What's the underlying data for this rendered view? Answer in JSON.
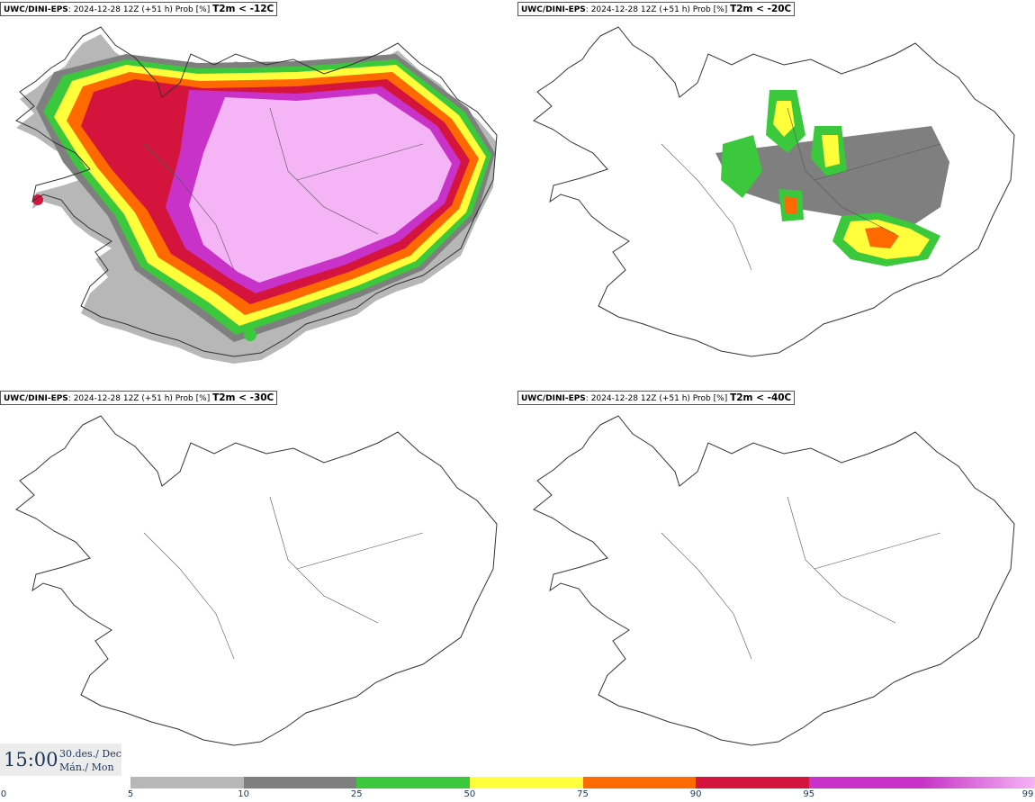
{
  "panels": [
    {
      "model": "UWC/DINI-EPS",
      "info": ": 2024-12-28 12Z (+51 h) Prob [%] ",
      "condition": "T2m < -12C"
    },
    {
      "model": "UWC/DINI-EPS",
      "info": ": 2024-12-28 12Z (+51 h) Prob [%] ",
      "condition": "T2m < -20C"
    },
    {
      "model": "UWC/DINI-EPS",
      "info": ": 2024-12-28 12Z (+51 h) Prob [%] ",
      "condition": "T2m < -30C"
    },
    {
      "model": "UWC/DINI-EPS",
      "info": ": 2024-12-28 12Z (+51 h) Prob [%] ",
      "condition": "T2m < -40C"
    }
  ],
  "timestamp": {
    "time": "15:00",
    "date": "30.des./ Dec",
    "day": "Mán./ Mon"
  },
  "legend": {
    "ticks": [
      "0",
      "5",
      "10",
      "25",
      "50",
      "75",
      "90",
      "95",
      "99"
    ],
    "colors": [
      "#b7b7b7",
      "#7f7f7f",
      "#3cc83c",
      "#ffff3c",
      "#ff6a00",
      "#d4143c",
      "#c832c8",
      "#f5b4f5"
    ]
  }
}
